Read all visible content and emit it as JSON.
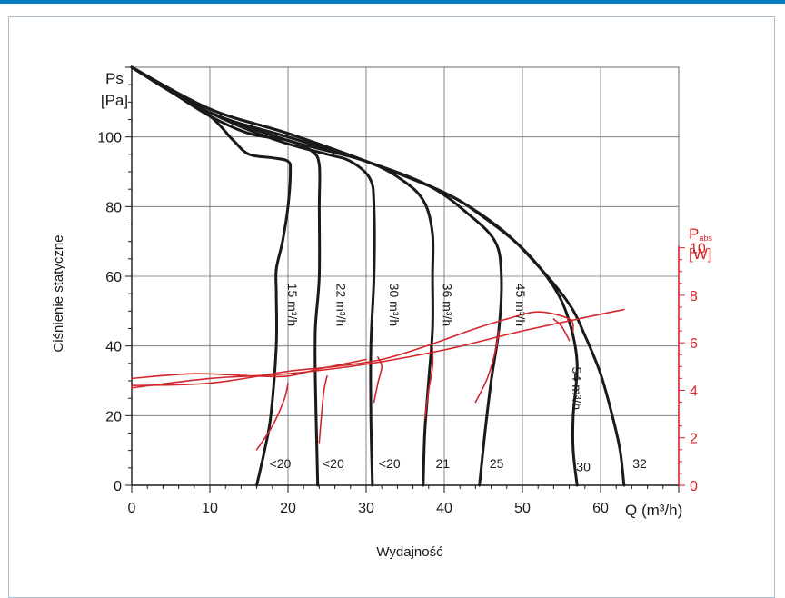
{
  "chart_data": {
    "type": "line",
    "title": "",
    "xlabel": "Wydajność",
    "xaxis_end_label": "Q (m³/h)",
    "ylabel": "Ciśnienie statyczne",
    "y_axis_name": "Ps",
    "y_axis_unit": "[Pa]",
    "y2_axis_name": "P",
    "y2_axis_subscript": "abs",
    "y2_axis_unit": "[W]",
    "xlim": [
      0,
      70
    ],
    "ylim": [
      0,
      120
    ],
    "y2lim": [
      0,
      17.6
    ],
    "x_ticks": [
      0,
      10,
      20,
      30,
      40,
      50,
      60
    ],
    "y_ticks": [
      0,
      20,
      40,
      60,
      80,
      100
    ],
    "y2_ticks": [
      0,
      2,
      4,
      6,
      8,
      10
    ],
    "grid": true,
    "colors": {
      "pressure": "#1a1a1a",
      "power": "#d3262b",
      "grid": "#6b6b6b"
    },
    "series": [
      {
        "name": "15 m³/h",
        "axis": "y",
        "points": [
          [
            0,
            120
          ],
          [
            5,
            113
          ],
          [
            10,
            106
          ],
          [
            13,
            99
          ],
          [
            15,
            95
          ],
          [
            18,
            94
          ],
          [
            20,
            93
          ],
          [
            20.3,
            90
          ],
          [
            20,
            80
          ],
          [
            19.3,
            70
          ],
          [
            18.5,
            62
          ],
          [
            18.5,
            55
          ],
          [
            18.5,
            40
          ],
          [
            17.8,
            20
          ],
          [
            17,
            10
          ],
          [
            16,
            0
          ]
        ]
      },
      {
        "name": "22 m³/h",
        "axis": "y",
        "points": [
          [
            0,
            120
          ],
          [
            5,
            113
          ],
          [
            10,
            106
          ],
          [
            15,
            101
          ],
          [
            20,
            99
          ],
          [
            23,
            96
          ],
          [
            24,
            92
          ],
          [
            24,
            80
          ],
          [
            24,
            60
          ],
          [
            23.5,
            45
          ],
          [
            23.5,
            30
          ],
          [
            23.7,
            10
          ],
          [
            23.8,
            0
          ]
        ]
      },
      {
        "name": "30 m³/h",
        "axis": "y",
        "points": [
          [
            0,
            120
          ],
          [
            5,
            113
          ],
          [
            10,
            107
          ],
          [
            15,
            102
          ],
          [
            20,
            98
          ],
          [
            25,
            95
          ],
          [
            28,
            93
          ],
          [
            30.5,
            88
          ],
          [
            31,
            80
          ],
          [
            31,
            60
          ],
          [
            30.6,
            40
          ],
          [
            30.6,
            20
          ],
          [
            30.8,
            0
          ]
        ]
      },
      {
        "name": "36 m³/h",
        "axis": "y",
        "points": [
          [
            0,
            120
          ],
          [
            5,
            113
          ],
          [
            10,
            107
          ],
          [
            20,
            99
          ],
          [
            30,
            93
          ],
          [
            35,
            87
          ],
          [
            37.5,
            81
          ],
          [
            38.5,
            72
          ],
          [
            38.5,
            60
          ],
          [
            38.5,
            45
          ],
          [
            38,
            30
          ],
          [
            37.5,
            15
          ],
          [
            37.3,
            0
          ]
        ]
      },
      {
        "name": "45 m³/h",
        "axis": "y",
        "points": [
          [
            0,
            120
          ],
          [
            10,
            107
          ],
          [
            20,
            100
          ],
          [
            30,
            93
          ],
          [
            38,
            86
          ],
          [
            43,
            78
          ],
          [
            46.5,
            70
          ],
          [
            47.3,
            60
          ],
          [
            47,
            45
          ],
          [
            46,
            30
          ],
          [
            45.2,
            15
          ],
          [
            44.5,
            0
          ]
        ]
      },
      {
        "name": "54 m³/h",
        "axis": "y",
        "points": [
          [
            0,
            120
          ],
          [
            10,
            108
          ],
          [
            20,
            101
          ],
          [
            30,
            93
          ],
          [
            40,
            84
          ],
          [
            45,
            77
          ],
          [
            50,
            68
          ],
          [
            54,
            57
          ],
          [
            56,
            47
          ],
          [
            57,
            35
          ],
          [
            56.5,
            20
          ],
          [
            56.5,
            10
          ],
          [
            57,
            0
          ]
        ]
      },
      {
        "name": "",
        "axis": "y",
        "points": [
          [
            0,
            120
          ],
          [
            10,
            108
          ],
          [
            20,
            101
          ],
          [
            30,
            93
          ],
          [
            40,
            84
          ],
          [
            47,
            74
          ],
          [
            52,
            63
          ],
          [
            56,
            52
          ],
          [
            58,
            43
          ],
          [
            60,
            32
          ],
          [
            61.5,
            20
          ],
          [
            62.5,
            10
          ],
          [
            63,
            0
          ]
        ]
      },
      {
        "name": "",
        "axis": "y2",
        "points": [
          [
            0,
            4.1
          ],
          [
            10,
            4.5
          ],
          [
            20,
            4.7
          ],
          [
            30,
            5.1
          ],
          [
            40,
            5.7
          ],
          [
            50,
            6.5
          ],
          [
            60,
            7.2
          ],
          [
            63,
            7.4
          ]
        ]
      },
      {
        "name": "",
        "axis": "y2",
        "points": [
          [
            0,
            4.5
          ],
          [
            8,
            4.7
          ],
          [
            16,
            4.6
          ],
          [
            20,
            4.6
          ],
          [
            24,
            4.9
          ],
          [
            30,
            5.3
          ]
        ]
      },
      {
        "name": "",
        "axis": "y2",
        "points": [
          [
            0,
            4.2
          ],
          [
            10,
            4.3
          ],
          [
            20,
            4.8
          ],
          [
            26,
            5.0
          ],
          [
            32,
            5.3
          ],
          [
            38,
            5.9
          ],
          [
            44,
            6.6
          ],
          [
            48,
            7.0
          ],
          [
            52,
            7.3
          ],
          [
            56,
            7.0
          ],
          [
            56.5,
            6.5
          ]
        ]
      },
      {
        "name": "",
        "axis": "y2",
        "points": [
          [
            16,
            1.5
          ],
          [
            18,
            2.5
          ],
          [
            19.5,
            3.6
          ],
          [
            20,
            4.3
          ]
        ]
      },
      {
        "name": "",
        "axis": "y2",
        "points": [
          [
            24,
            1.8
          ],
          [
            24.3,
            3.0
          ],
          [
            24.6,
            4.0
          ],
          [
            25,
            4.6
          ]
        ]
      },
      {
        "name": "",
        "axis": "y2",
        "points": [
          [
            31,
            3.5
          ],
          [
            31.5,
            4.3
          ],
          [
            32,
            5.0
          ],
          [
            31.5,
            5.4
          ]
        ]
      },
      {
        "name": "",
        "axis": "y2",
        "points": [
          [
            37.5,
            2.8
          ],
          [
            38,
            4.0
          ],
          [
            38.5,
            5.0
          ],
          [
            38.5,
            5.8
          ]
        ]
      },
      {
        "name": "",
        "axis": "y2",
        "points": [
          [
            44,
            3.5
          ],
          [
            45.5,
            4.5
          ],
          [
            46.5,
            5.6
          ],
          [
            47,
            6.5
          ]
        ]
      },
      {
        "name": "",
        "axis": "y2",
        "points": [
          [
            54,
            7.0
          ],
          [
            55,
            6.7
          ],
          [
            56,
            6.1
          ]
        ]
      }
    ],
    "curve_labels": [
      {
        "text": "15 m³/h",
        "x": 20.0,
        "y": 58
      },
      {
        "text": "22 m³/h",
        "x": 26.2,
        "y": 58
      },
      {
        "text": "30 m³/h",
        "x": 33.0,
        "y": 58
      },
      {
        "text": "36 m³/h",
        "x": 39.8,
        "y": 58
      },
      {
        "text": "45 m³/h",
        "x": 49.2,
        "y": 58
      },
      {
        "text": "54 m³/h",
        "x": 56.4,
        "y": 34
      }
    ],
    "power_labels": [
      {
        "text": "<20",
        "x": 19.0,
        "y": 5
      },
      {
        "text": "<20",
        "x": 25.8,
        "y": 5
      },
      {
        "text": "<20",
        "x": 33.0,
        "y": 5
      },
      {
        "text": "21",
        "x": 39.8,
        "y": 5
      },
      {
        "text": "25",
        "x": 46.7,
        "y": 5
      },
      {
        "text": "30",
        "x": 57.8,
        "y": 4
      },
      {
        "text": "32",
        "x": 65.0,
        "y": 5
      }
    ]
  }
}
